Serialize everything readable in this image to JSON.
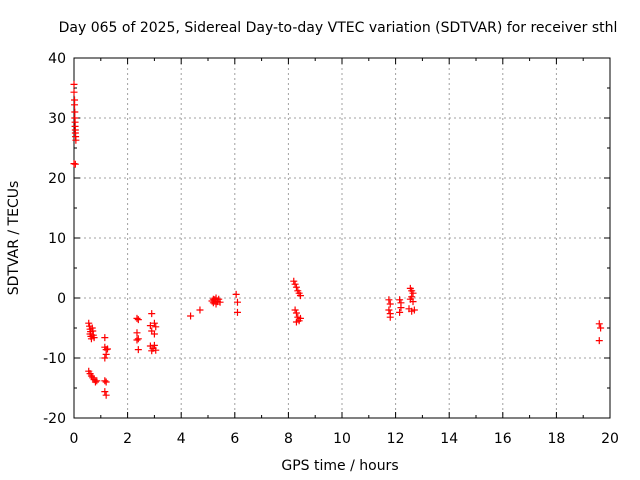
{
  "chart_data": {
    "type": "scatter",
    "title": "Day 065 of 2025, Sidereal Day-to-day VTEC variation (SDTVAR) for receiver sthl",
    "xlabel": "GPS time / hours",
    "ylabel": "SDTVAR / TECUs",
    "xlim": [
      0,
      20
    ],
    "ylim": [
      -20,
      40
    ],
    "xticks": [
      0,
      2,
      4,
      6,
      8,
      10,
      12,
      14,
      16,
      18,
      20
    ],
    "yticks": [
      -20,
      -10,
      0,
      10,
      20,
      30,
      40
    ],
    "grid": true,
    "marker": "plus",
    "color": "#ff0000",
    "series": [
      {
        "name": "SDTVAR",
        "points": [
          [
            0.0,
            35.6
          ],
          [
            0.0,
            34.3
          ],
          [
            0.02,
            33.0
          ],
          [
            0.02,
            32.2
          ],
          [
            0.03,
            31.0
          ],
          [
            0.03,
            30.0
          ],
          [
            0.04,
            29.3
          ],
          [
            0.04,
            28.6
          ],
          [
            0.05,
            28.0
          ],
          [
            0.05,
            27.5
          ],
          [
            0.06,
            26.9
          ],
          [
            0.07,
            26.3
          ],
          [
            0.0,
            22.4
          ],
          [
            0.05,
            22.3
          ],
          [
            0.55,
            -4.2
          ],
          [
            0.58,
            -4.7
          ],
          [
            0.6,
            -5.2
          ],
          [
            0.62,
            -5.6
          ],
          [
            0.6,
            -6.0
          ],
          [
            0.63,
            -6.4
          ],
          [
            0.65,
            -6.8
          ],
          [
            0.68,
            -5.0
          ],
          [
            0.7,
            -5.5
          ],
          [
            0.72,
            -6.2
          ],
          [
            0.75,
            -6.6
          ],
          [
            0.55,
            -12.2
          ],
          [
            0.6,
            -12.6
          ],
          [
            0.65,
            -13.0
          ],
          [
            0.7,
            -13.3
          ],
          [
            0.75,
            -13.6
          ],
          [
            0.8,
            -14.0
          ],
          [
            0.85,
            -13.8
          ],
          [
            1.15,
            -6.6
          ],
          [
            1.15,
            -8.2
          ],
          [
            1.2,
            -8.6
          ],
          [
            1.2,
            -9.4
          ],
          [
            1.15,
            -10.0
          ],
          [
            1.25,
            -8.5
          ],
          [
            1.15,
            -13.8
          ],
          [
            1.2,
            -14.0
          ],
          [
            1.15,
            -15.6
          ],
          [
            1.2,
            -16.2
          ],
          [
            2.35,
            -3.4
          ],
          [
            2.4,
            -3.6
          ],
          [
            2.35,
            -5.8
          ],
          [
            2.4,
            -6.8
          ],
          [
            2.35,
            -7.0
          ],
          [
            2.4,
            -8.6
          ],
          [
            2.9,
            -2.6
          ],
          [
            2.85,
            -4.6
          ],
          [
            3.0,
            -4.2
          ],
          [
            3.05,
            -4.8
          ],
          [
            2.9,
            -5.5
          ],
          [
            3.0,
            -6.0
          ],
          [
            2.85,
            -8.0
          ],
          [
            2.95,
            -8.4
          ],
          [
            3.05,
            -8.7
          ],
          [
            2.9,
            -8.8
          ],
          [
            3.0,
            -7.9
          ],
          [
            4.35,
            -3.0
          ],
          [
            4.7,
            -2.0
          ],
          [
            5.15,
            -0.5
          ],
          [
            5.2,
            -0.8
          ],
          [
            5.25,
            -0.3
          ],
          [
            5.3,
            -1.0
          ],
          [
            5.35,
            -0.6
          ],
          [
            5.4,
            -0.2
          ],
          [
            5.45,
            -0.7
          ],
          [
            5.3,
            0.0
          ],
          [
            5.2,
            -0.2
          ],
          [
            6.05,
            0.6
          ],
          [
            6.1,
            -0.7
          ],
          [
            6.1,
            -2.4
          ],
          [
            8.2,
            2.8
          ],
          [
            8.25,
            2.3
          ],
          [
            8.3,
            1.8
          ],
          [
            8.35,
            1.2
          ],
          [
            8.4,
            0.8
          ],
          [
            8.45,
            0.4
          ],
          [
            8.25,
            -2.0
          ],
          [
            8.3,
            -2.5
          ],
          [
            8.35,
            -3.2
          ],
          [
            8.4,
            -3.8
          ],
          [
            8.3,
            -4.0
          ],
          [
            8.45,
            -3.4
          ],
          [
            11.75,
            -0.3
          ],
          [
            11.8,
            -1.0
          ],
          [
            11.75,
            -2.0
          ],
          [
            11.8,
            -2.6
          ],
          [
            11.8,
            -3.2
          ],
          [
            12.15,
            -0.3
          ],
          [
            12.2,
            -0.8
          ],
          [
            12.2,
            -1.6
          ],
          [
            12.15,
            -2.4
          ],
          [
            12.55,
            1.6
          ],
          [
            12.6,
            1.2
          ],
          [
            12.65,
            0.8
          ],
          [
            12.6,
            0.2
          ],
          [
            12.55,
            -0.2
          ],
          [
            12.65,
            -0.6
          ],
          [
            12.5,
            -1.8
          ],
          [
            12.6,
            -2.2
          ],
          [
            12.7,
            -2.0
          ],
          [
            19.6,
            -4.3
          ],
          [
            19.65,
            -5.0
          ],
          [
            19.6,
            -7.1
          ]
        ]
      }
    ]
  }
}
